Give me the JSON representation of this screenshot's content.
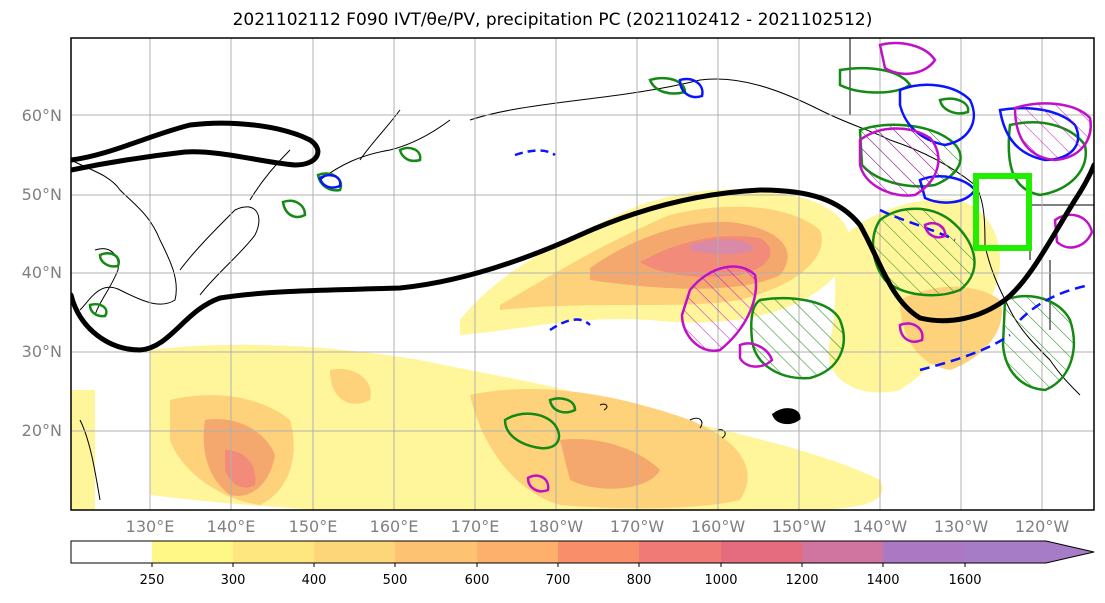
{
  "title": "2021102112 F090 IVT/θe/PV, precipitation PC (2021102412 - 2021102512)",
  "lat_labels": [
    "60°N",
    "50°N",
    "40°N",
    "30°N",
    "20°N"
  ],
  "lon_labels": [
    "130°E",
    "140°E",
    "150°E",
    "160°E",
    "170°E",
    "180°W",
    "170°W",
    "160°W",
    "150°W",
    "140°W",
    "130°W",
    "120°W"
  ],
  "colorbar": {
    "ticks": [
      "250",
      "300",
      "400",
      "500",
      "600",
      "700",
      "800",
      "1000",
      "1200",
      "1400",
      "1600"
    ],
    "colors": [
      "#ffffff",
      "#fff886",
      "#fee77f",
      "#fdd679",
      "#fdc372",
      "#fdb06c",
      "#f98e6a",
      "#f07a76",
      "#e56c7e",
      "#d074a0",
      "#ab78c4"
    ]
  },
  "colors": {
    "ivt_yellow": "#fff59a",
    "ivt_orange": "#fdd27a",
    "ivt_red": "#f28b7a",
    "ivt_pink": "#e07e95",
    "theta_contour": "#000000",
    "precip_green": "#148a14",
    "pv_blue": "#0a14ff",
    "pv_magenta": "#c010c8",
    "target_box": "#22ee00"
  }
}
